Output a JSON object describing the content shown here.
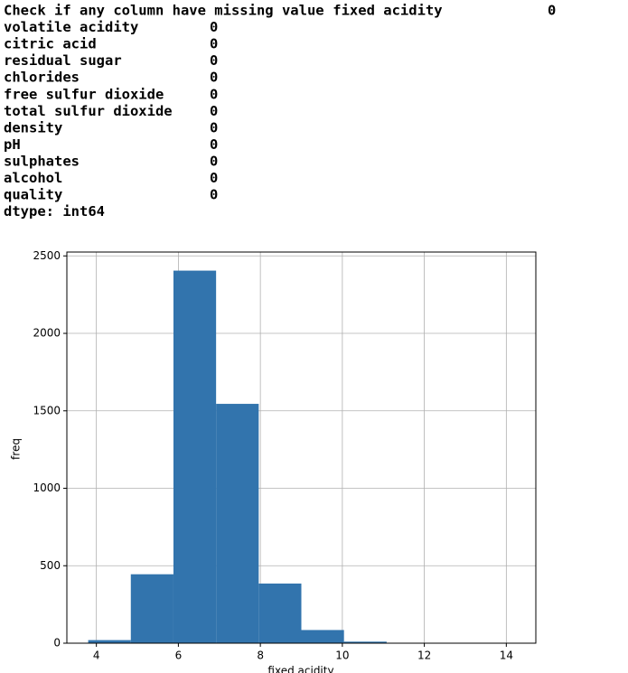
{
  "output": {
    "header": "Check if any column have missing value",
    "rows": [
      [
        "fixed acidity",
        "0"
      ],
      [
        "volatile acidity",
        "0"
      ],
      [
        "citric acid",
        "0"
      ],
      [
        "residual sugar",
        "0"
      ],
      [
        "chlorides",
        "0"
      ],
      [
        "free sulfur dioxide",
        "0"
      ],
      [
        "total sulfur dioxide",
        "0"
      ],
      [
        "density",
        "0"
      ],
      [
        "pH",
        "0"
      ],
      [
        "sulphates",
        "0"
      ],
      [
        "alcohol",
        "0"
      ],
      [
        "quality",
        "0"
      ]
    ],
    "dtype": "dtype: int64"
  },
  "chart_data": {
    "type": "histogram",
    "xlabel": "fixed acidity",
    "ylabel": "freq",
    "bins": [
      3.8,
      4.84,
      5.88,
      6.92,
      7.96,
      9.0,
      10.04,
      11.08,
      12.12,
      13.16,
      14.2
    ],
    "values": [
      20,
      445,
      2405,
      1545,
      385,
      85,
      10,
      2,
      0,
      1
    ],
    "color": "#3274ad",
    "xlim": [
      3.28,
      14.72
    ],
    "ylim": [
      0,
      2525
    ],
    "xticks": [
      4,
      6,
      8,
      10,
      12,
      14
    ],
    "yticks": [
      0,
      500,
      1000,
      1500,
      2000,
      2500
    ],
    "grid": true
  }
}
